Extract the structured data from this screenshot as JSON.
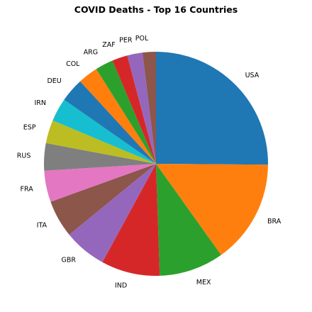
{
  "chart_data": {
    "type": "pie",
    "title": "COVID Deaths - Top 16 Countries",
    "slices": [
      {
        "label": "USA",
        "value": 26.1,
        "color": "#1f77b4"
      },
      {
        "label": "BRA",
        "value": 15.6,
        "color": "#ff7f0e"
      },
      {
        "label": "MEX",
        "value": 9.7,
        "color": "#2ca02c"
      },
      {
        "label": "IND",
        "value": 8.8,
        "color": "#d62728"
      },
      {
        "label": "GBR",
        "value": 6.4,
        "color": "#9467bd"
      },
      {
        "label": "ITA",
        "value": 5.6,
        "color": "#8c564b"
      },
      {
        "label": "FRA",
        "value": 4.7,
        "color": "#e377c2"
      },
      {
        "label": "RUS",
        "value": 4.1,
        "color": "#7f7f7f"
      },
      {
        "label": "ESP",
        "value": 3.5,
        "color": "#bcbd22"
      },
      {
        "label": "IRN",
        "value": 3.5,
        "color": "#17becf"
      },
      {
        "label": "DEU",
        "value": 3.6,
        "color": "#1f77b4"
      },
      {
        "label": "COL",
        "value": 3.0,
        "color": "#ff7f0e"
      },
      {
        "label": "ARG",
        "value": 2.7,
        "color": "#2ca02c"
      },
      {
        "label": "ZAF",
        "value": 2.3,
        "color": "#d62728"
      },
      {
        "label": "PER",
        "value": 2.3,
        "color": "#9467bd"
      },
      {
        "label": "POL",
        "value": 2.0,
        "color": "#8c564b"
      }
    ],
    "start_angle_deg": 90,
    "direction": "clockwise"
  }
}
